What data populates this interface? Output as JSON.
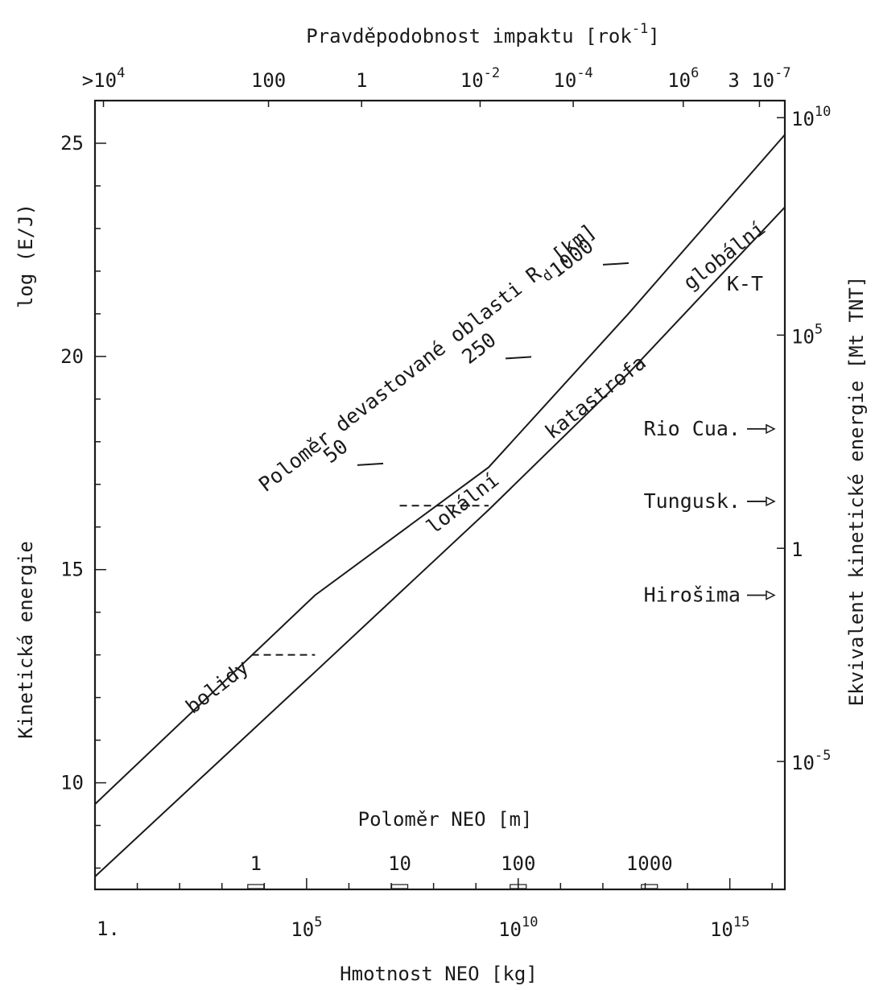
{
  "chart_data": {
    "type": "line",
    "title": "",
    "xlabel": "Hmotnost NEO [kg]",
    "ylabel": "log (E/J)",
    "ylabel2": "Kinetická energie",
    "top_axis_label": "Pravděpodobnost impaktu [rok",
    "top_axis_label_exp": "-1",
    "top_axis_label_tail": "]",
    "right_axis_label": "Ekvivalent kinetické energie [Mt TNT]",
    "inner_axis_label": "Poloměr NEO [m]",
    "xscale": "log",
    "xlim_log10": [
      0,
      16.3
    ],
    "ylim": [
      7.5,
      26
    ],
    "x_ticks": [
      {
        "log10": 0,
        "label": "1."
      },
      {
        "log10": 5,
        "base": "10",
        "exp": "5"
      },
      {
        "log10": 10,
        "base": "10",
        "exp": "10"
      },
      {
        "log10": 15,
        "base": "10",
        "exp": "15"
      }
    ],
    "y_ticks": [
      {
        "value": 10,
        "label": "10"
      },
      {
        "value": 15,
        "label": "15"
      },
      {
        "value": 20,
        "label": "20"
      },
      {
        "value": 25,
        "label": "25"
      }
    ],
    "top_ticks": [
      {
        "x_log10": 0.2,
        "label": ">10",
        "exp": "4"
      },
      {
        "x_log10": 4.1,
        "label": "100",
        "exp": ""
      },
      {
        "x_log10": 6.3,
        "label": "1",
        "exp": ""
      },
      {
        "x_log10": 9.1,
        "label": "10",
        "exp": "-2"
      },
      {
        "x_log10": 11.3,
        "label": "10",
        "exp": "-4"
      },
      {
        "x_log10": 13.9,
        "label": "10",
        "exp": "6"
      },
      {
        "x_log10": 15.7,
        "label": "3 10",
        "exp": "-7"
      }
    ],
    "right_ticks": [
      {
        "value": 25.6,
        "label": "10",
        "exp": "10"
      },
      {
        "value": 20.5,
        "label": "10",
        "exp": "5"
      },
      {
        "value": 15.5,
        "label": "1",
        "exp": ""
      },
      {
        "value": 10.5,
        "label": "10",
        "exp": "-5"
      }
    ],
    "radius_ticks": [
      {
        "x_log10": 3.8,
        "label": "1"
      },
      {
        "x_log10": 7.2,
        "label": "10"
      },
      {
        "x_log10": 10.0,
        "label": "100"
      },
      {
        "x_log10": 13.1,
        "label": "1000"
      }
    ],
    "series": [
      {
        "x_log10": [
          0,
          5.2,
          9.3,
          12.6,
          16.3
        ],
        "y": [
          9.5,
          14.4,
          17.4,
          21.0,
          25.2
        ]
      },
      {
        "x_log10": [
          0,
          5.2,
          9.3,
          12.6,
          16.3
        ],
        "y": [
          7.8,
          12.6,
          16.4,
          19.6,
          23.5
        ]
      }
    ],
    "dashed_segments": [
      {
        "x1_log10": 3.7,
        "x2_log10": 5.2,
        "y": 13.0
      },
      {
        "x1_log10": 7.2,
        "x2_log10": 9.3,
        "y": 16.5
      }
    ],
    "region_labels": [
      "bolidy",
      "lokální",
      "katastrofa",
      "globální"
    ],
    "devastation_label": "Poloměr devastované oblasti R",
    "devastation_sub": "d",
    "devastation_unit": "[km]",
    "devastation_radii": [
      {
        "label": "50",
        "x_log10": 7.0,
        "y": 17.3
      },
      {
        "label": "250",
        "x_log10": 10.5,
        "y": 19.8
      },
      {
        "label": "1000",
        "x_log10": 12.8,
        "y": 22.0
      }
    ],
    "events": [
      {
        "label": "K-T",
        "y": 21.7,
        "arrow": false
      },
      {
        "label": "Rio Cua.",
        "y": 18.3,
        "arrow": true
      },
      {
        "label": "Tungusk.",
        "y": 16.6,
        "arrow": true
      },
      {
        "label": "Hirošima",
        "y": 14.4,
        "arrow": true
      }
    ]
  }
}
